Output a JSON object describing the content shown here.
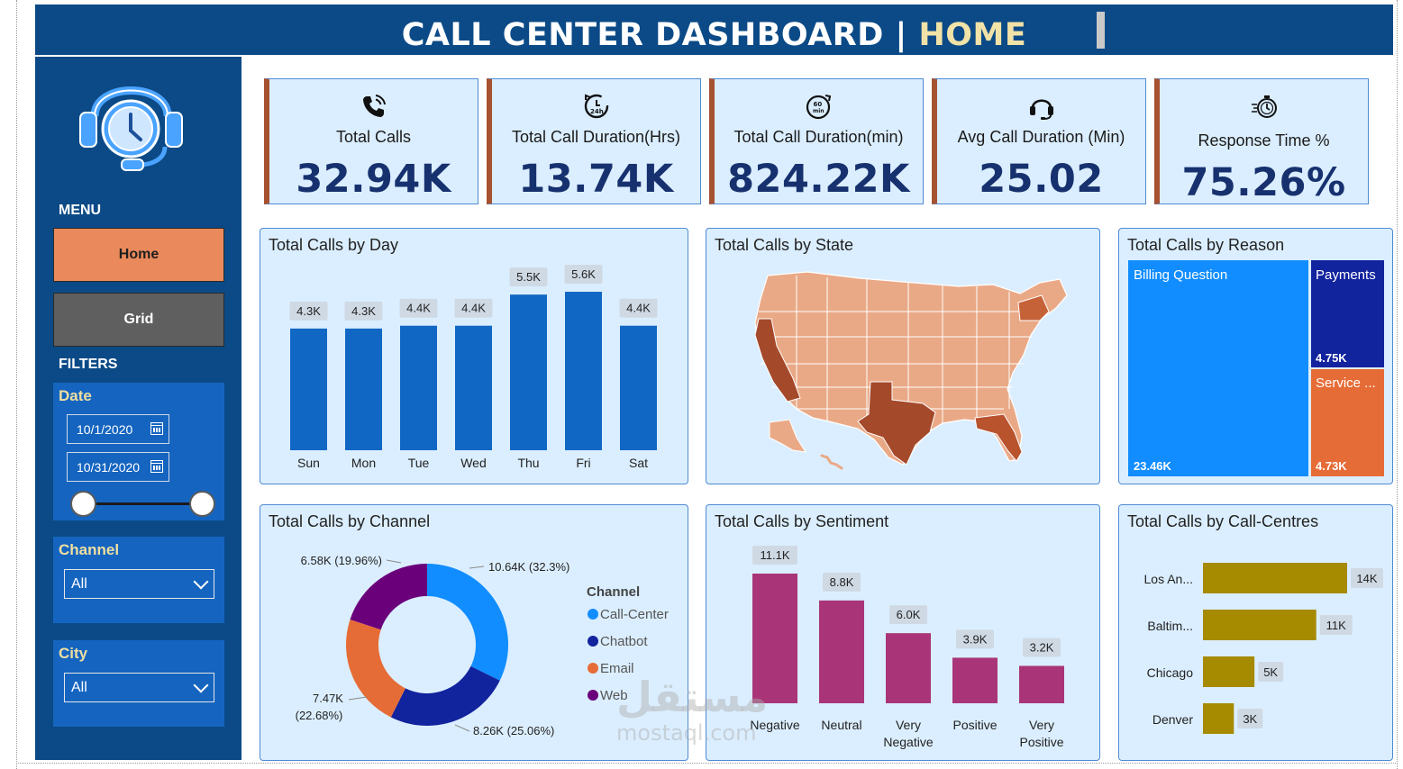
{
  "header": {
    "title": "CALL CENTER DASHBOARD | ",
    "highlight": "HOME"
  },
  "sidebar": {
    "logo_icon": "headset-clock-icon",
    "menu_label": "MENU",
    "home_label": "Home",
    "grid_label": "Grid",
    "filters_label": "FILTERS",
    "date": {
      "title": "Date",
      "start": "10/1/2020",
      "end": "10/31/2020"
    },
    "channel": {
      "title": "Channel",
      "value": "All"
    },
    "city": {
      "title": "City",
      "value": "All"
    }
  },
  "kpis": [
    {
      "label": "Total Calls",
      "value": "32.94K",
      "icon": "phone-ringing-icon"
    },
    {
      "label": "Total Call Duration(Hrs)",
      "value": "13.74K",
      "icon": "24h-clock-icon"
    },
    {
      "label": "Total Call Duration(min)",
      "value": "824.22K",
      "icon": "60-min-icon"
    },
    {
      "label": "Avg Call Duration (Min)",
      "value": "25.02",
      "icon": "headphones-icon"
    },
    {
      "label": "Response Time %",
      "value": "75.26%",
      "icon": "stopwatch-icon"
    }
  ],
  "panels": {
    "day": "Total Calls by Day",
    "state": "Total Calls by State",
    "reason": "Total Calls by Reason",
    "channel": "Total Calls by Channel",
    "sentiment": "Total Calls by Sentiment",
    "centres": "Total Calls by Call-Centres"
  },
  "chart_data": [
    {
      "type": "bar",
      "title": "Total Calls by Day",
      "categories": [
        "Sun",
        "Mon",
        "Tue",
        "Wed",
        "Thu",
        "Fri",
        "Sat"
      ],
      "values": [
        4.3,
        4.3,
        4.4,
        4.4,
        5.5,
        5.6,
        4.4
      ],
      "labels": [
        "4.3K",
        "4.3K",
        "4.4K",
        "4.4K",
        "5.5K",
        "5.6K",
        "4.4K"
      ],
      "color": "#1168c4"
    },
    {
      "type": "pie",
      "title": "Total Calls by Channel",
      "legend_title": "Channel",
      "categories": [
        "Call-Center",
        "Chatbot",
        "Email",
        "Web"
      ],
      "values": [
        10.64,
        8.26,
        7.47,
        6.58
      ],
      "labels": [
        "10.64K (32.3%)",
        "8.26K (25.06%)",
        "7.47K (22.68%)",
        "6.58K (19.96%)"
      ],
      "colors": [
        "#118dff",
        "#12239e",
        "#e66c37",
        "#6b007b"
      ]
    },
    {
      "type": "bar",
      "title": "Total Calls by Sentiment",
      "categories": [
        "Negative",
        "Neutral",
        "Very Negative",
        "Positive",
        "Very Positive"
      ],
      "values": [
        11.1,
        8.8,
        6.0,
        3.9,
        3.2
      ],
      "labels": [
        "11.1K",
        "8.8K",
        "6.0K",
        "3.9K",
        "3.2K"
      ],
      "color": "#a93578"
    },
    {
      "type": "bar",
      "title": "Total Calls by Call-Centres",
      "orientation": "horizontal",
      "categories": [
        "Los An...",
        "Baltim...",
        "Chicago",
        "Denver"
      ],
      "values": [
        14,
        11,
        5,
        3
      ],
      "labels": [
        "14K",
        "11K",
        "5K",
        "3K"
      ],
      "color": "#a68a00"
    },
    {
      "type": "treemap",
      "title": "Total Calls by Reason",
      "categories": [
        "Billing Question",
        "Payments",
        "Service ..."
      ],
      "values": [
        23.46,
        4.75,
        4.73
      ],
      "labels": [
        "23.46K",
        "4.75K",
        "4.73K"
      ],
      "colors": [
        "#118dff",
        "#12239e",
        "#e66c37"
      ]
    }
  ],
  "watermark": {
    "arabic": "مستقل",
    "latin": "mostaql.com"
  }
}
